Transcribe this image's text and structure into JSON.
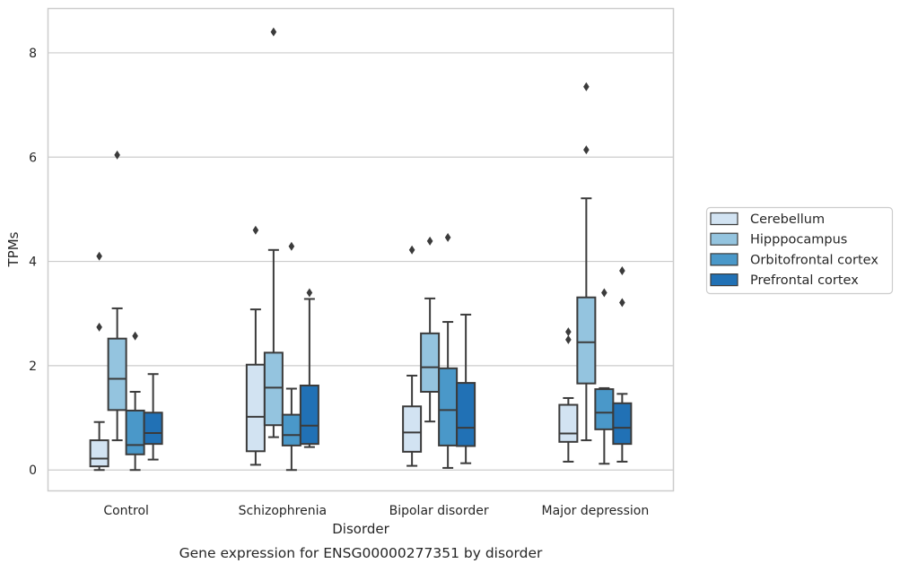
{
  "chart_data": {
    "type": "box",
    "title": "",
    "caption": "Gene expression for ENSG00000277351 by disorder",
    "xlabel": "Disorder",
    "ylabel": "TPMs",
    "ylim": [
      -0.4,
      8.85
    ],
    "yticks": [
      0,
      2,
      4,
      6,
      8
    ],
    "grid": true,
    "legend_position": "right",
    "categories": [
      "Control",
      "Schizophrenia",
      "Bipolar disorder",
      "Major depression"
    ],
    "series": [
      {
        "name": "Cerebellum",
        "color": "#d2e3f2",
        "boxes": [
          {
            "whisker_low": 0.0,
            "q1": 0.07,
            "median": 0.22,
            "q3": 0.57,
            "whisker_high": 0.92,
            "outliers": [
              2.74,
              4.1
            ]
          },
          {
            "whisker_low": 0.1,
            "q1": 0.36,
            "median": 1.02,
            "q3": 2.02,
            "whisker_high": 3.08,
            "outliers": [
              4.6
            ]
          },
          {
            "whisker_low": 0.08,
            "q1": 0.35,
            "median": 0.72,
            "q3": 1.22,
            "whisker_high": 1.81,
            "outliers": [
              4.22
            ]
          },
          {
            "whisker_low": 0.16,
            "q1": 0.54,
            "median": 0.7,
            "q3": 1.25,
            "whisker_high": 1.38,
            "outliers": [
              2.5,
              2.65
            ]
          }
        ]
      },
      {
        "name": "Hipppocampus",
        "color": "#94c4df",
        "boxes": [
          {
            "whisker_low": 0.57,
            "q1": 1.15,
            "median": 1.75,
            "q3": 2.52,
            "whisker_high": 3.1,
            "outliers": [
              6.04
            ]
          },
          {
            "whisker_low": 0.63,
            "q1": 0.86,
            "median": 1.58,
            "q3": 2.25,
            "whisker_high": 4.22,
            "outliers": [
              8.4
            ]
          },
          {
            "whisker_low": 0.93,
            "q1": 1.5,
            "median": 1.97,
            "q3": 2.62,
            "whisker_high": 3.29,
            "outliers": [
              4.39
            ]
          },
          {
            "whisker_low": 0.57,
            "q1": 1.66,
            "median": 2.45,
            "q3": 3.31,
            "whisker_high": 5.21,
            "outliers": [
              6.14,
              7.35
            ]
          }
        ]
      },
      {
        "name": "Orbitofrontal cortex",
        "color": "#4a98c9",
        "boxes": [
          {
            "whisker_low": 0.0,
            "q1": 0.3,
            "median": 0.48,
            "q3": 1.14,
            "whisker_high": 1.5,
            "outliers": [
              2.57
            ]
          },
          {
            "whisker_low": 0.0,
            "q1": 0.47,
            "median": 0.67,
            "q3": 1.06,
            "whisker_high": 1.56,
            "outliers": [
              4.29
            ]
          },
          {
            "whisker_low": 0.04,
            "q1": 0.47,
            "median": 1.15,
            "q3": 1.95,
            "whisker_high": 2.84,
            "outliers": [
              4.46
            ]
          },
          {
            "whisker_low": 0.12,
            "q1": 0.78,
            "median": 1.1,
            "q3": 1.55,
            "whisker_high": 1.57,
            "outliers": [
              3.4
            ]
          }
        ]
      },
      {
        "name": "Prefrontal cortex",
        "color": "#2171b5",
        "boxes": [
          {
            "whisker_low": 0.2,
            "q1": 0.5,
            "median": 0.71,
            "q3": 1.1,
            "whisker_high": 1.84,
            "outliers": []
          },
          {
            "whisker_low": 0.44,
            "q1": 0.5,
            "median": 0.85,
            "q3": 1.62,
            "whisker_high": 3.28,
            "outliers": [
              3.4
            ]
          },
          {
            "whisker_low": 0.13,
            "q1": 0.46,
            "median": 0.81,
            "q3": 1.67,
            "whisker_high": 2.98,
            "outliers": []
          },
          {
            "whisker_low": 0.16,
            "q1": 0.5,
            "median": 0.81,
            "q3": 1.28,
            "whisker_high": 1.46,
            "outliers": [
              3.21,
              3.82
            ]
          }
        ]
      }
    ]
  }
}
